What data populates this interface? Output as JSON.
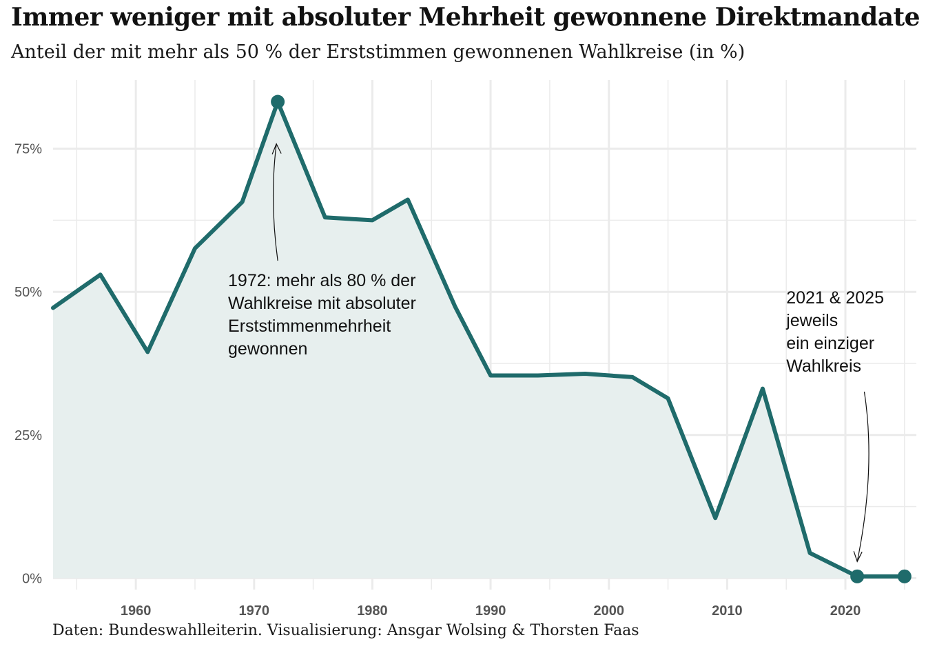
{
  "title": "Immer weniger mit absoluter Mehrheit gewonnene Direktmandate",
  "subtitle": "Anteil der mit mehr als 50 % der Erststimmen gewonnenen Wahlkreise (in %)",
  "caption": "Daten: Bundeswahlleiterin. Visualisierung: Ansgar Wolsing & Thorsten Faas",
  "colors": {
    "line": "#1f6b6b",
    "area": "#e7efee",
    "grid": "#ebebeb"
  },
  "chart_data": {
    "type": "area",
    "title": "Immer weniger mit absoluter Mehrheit gewonnene Direktmandate",
    "subtitle": "Anteil der mit mehr als 50 % der Erststimmen gewonnenen Wahlkreise (in %)",
    "xlabel": "",
    "ylabel": "",
    "x": [
      1953,
      1957,
      1961,
      1965,
      1969,
      1972,
      1976,
      1980,
      1983,
      1987,
      1990,
      1994,
      1998,
      2002,
      2005,
      2009,
      2013,
      2017,
      2021,
      2025
    ],
    "series": [
      {
        "values": [
          47.2,
          53.0,
          39.5,
          57.6,
          65.7,
          83.2,
          63.0,
          62.5,
          66.1,
          47.4,
          35.4,
          35.4,
          35.7,
          35.1,
          31.4,
          10.5,
          33.1,
          4.4,
          0.3,
          0.3
        ]
      }
    ],
    "highlighted_points": [
      1972,
      2021,
      2025
    ],
    "xlim": [
      1953,
      2026
    ],
    "ylim": [
      -2,
      87
    ],
    "yticks": [
      0,
      25,
      50,
      75
    ],
    "ytick_labels": [
      "0%",
      "25%",
      "50%",
      "75%"
    ],
    "xticks": [
      1960,
      1970,
      1980,
      1990,
      2000,
      2010,
      2020
    ],
    "xtick_labels": [
      "1960",
      "1970",
      "1980",
      "1990",
      "2000",
      "2010",
      "2020"
    ],
    "grid": true,
    "annotations": [
      {
        "x": 1972,
        "lines": [
          "1972: mehr als 80 % der",
          "Wahlkreise mit absoluter",
          "Erststimmenmehrheit",
          "gewonnen"
        ]
      },
      {
        "x": 2021,
        "lines": [
          "2021 & 2025",
          "jeweils",
          "ein einziger",
          "Wahlkreis"
        ]
      }
    ]
  }
}
